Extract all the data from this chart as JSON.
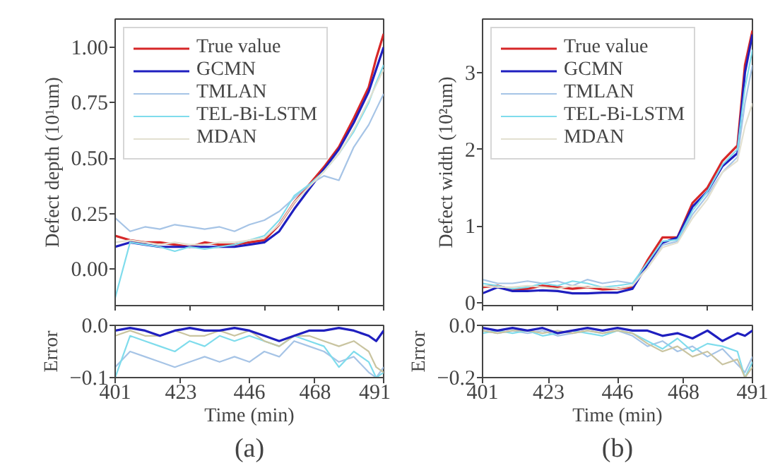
{
  "chart_data": [
    {
      "type": "line",
      "ylabel": "Defect depth (10¹um)",
      "x": [
        401,
        406,
        411,
        416,
        421,
        426,
        431,
        436,
        441,
        446,
        451,
        456,
        461,
        466,
        471,
        476,
        481,
        486,
        488.5,
        491
      ],
      "xlim": [
        401,
        491
      ],
      "xticks": [
        {
          "value": 401,
          "label": null
        },
        {
          "value": 426,
          "label": null
        },
        {
          "value": 451,
          "label": null
        },
        {
          "value": 476,
          "label": null
        },
        {
          "value": 491,
          "label": null
        }
      ],
      "ylim": [
        -0.165,
        1.127
      ],
      "yticks": [
        {
          "value": 0,
          "label": "0.00"
        },
        {
          "value": 0.25,
          "label": "0.25"
        },
        {
          "value": 0.5,
          "label": "0.50"
        },
        {
          "value": 0.75,
          "label": "0.75"
        },
        {
          "value": 1,
          "label": "1.00"
        }
      ],
      "tick_labels": "y",
      "legend": "top left",
      "grid": false,
      "series": [
        {
          "name": "True value",
          "color": "#d62728",
          "values": [
            0.15,
            0.13,
            0.12,
            0.12,
            0.11,
            0.1,
            0.12,
            0.11,
            0.11,
            0.12,
            0.13,
            0.2,
            0.3,
            0.38,
            0.46,
            0.55,
            0.68,
            0.82,
            0.95,
            1.06
          ]
        },
        {
          "name": "GCMN",
          "color": "#1f1fbf",
          "values": [
            0.1,
            0.12,
            0.11,
            0.1,
            0.1,
            0.1,
            0.1,
            0.1,
            0.1,
            0.11,
            0.12,
            0.17,
            0.27,
            0.36,
            0.45,
            0.54,
            0.66,
            0.8,
            0.9,
            1.0
          ]
        },
        {
          "name": "TMLAN",
          "color": "#a6c4e6",
          "values": [
            0.23,
            0.17,
            0.19,
            0.18,
            0.2,
            0.19,
            0.18,
            0.19,
            0.17,
            0.2,
            0.22,
            0.26,
            0.32,
            0.38,
            0.42,
            0.4,
            0.55,
            0.65,
            0.72,
            0.79
          ]
        },
        {
          "name": "TEL-Bi-LSTM",
          "color": "#7fdcec",
          "values": [
            -0.13,
            0.12,
            0.11,
            0.1,
            0.08,
            0.1,
            0.09,
            0.1,
            0.11,
            0.13,
            0.15,
            0.22,
            0.33,
            0.38,
            0.44,
            0.52,
            0.62,
            0.75,
            0.84,
            0.92
          ]
        },
        {
          "name": "MDAN",
          "color": "#e2e0d0",
          "values": [
            0.12,
            0.13,
            0.12,
            0.11,
            0.12,
            0.11,
            0.11,
            0.12,
            0.12,
            0.13,
            0.14,
            0.2,
            0.3,
            0.37,
            0.44,
            0.52,
            0.63,
            0.76,
            0.83,
            0.9
          ]
        }
      ]
    },
    {
      "type": "line",
      "ylabel": "Defect width (10²um)",
      "x": [
        401,
        406,
        411,
        416,
        421,
        426,
        431,
        436,
        441,
        446,
        451,
        456,
        461,
        466,
        471,
        476,
        481,
        486,
        488.5,
        491
      ],
      "xlim": [
        401,
        491
      ],
      "xticks": [
        {
          "value": 401,
          "label": null
        },
        {
          "value": 426,
          "label": null
        },
        {
          "value": 451,
          "label": null
        },
        {
          "value": 476,
          "label": null
        },
        {
          "value": 491,
          "label": null
        }
      ],
      "ylim": [
        -0.04,
        3.7
      ],
      "yticks": [
        0,
        1,
        2,
        3
      ],
      "tick_labels": "y",
      "legend": "top left",
      "grid": false,
      "series": [
        {
          "name": "True value",
          "color": "#d62728",
          "values": [
            0.2,
            0.22,
            0.17,
            0.18,
            0.22,
            0.2,
            0.18,
            0.2,
            0.17,
            0.18,
            0.2,
            0.55,
            0.85,
            0.85,
            1.3,
            1.5,
            1.85,
            2.05,
            3.1,
            3.55
          ]
        },
        {
          "name": "GCMN",
          "color": "#1f1fbf",
          "values": [
            0.12,
            0.2,
            0.15,
            0.15,
            0.16,
            0.15,
            0.12,
            0.12,
            0.13,
            0.13,
            0.18,
            0.5,
            0.78,
            0.85,
            1.25,
            1.45,
            1.78,
            1.95,
            3.0,
            3.5
          ]
        },
        {
          "name": "TMLAN",
          "color": "#a6c4e6",
          "values": [
            0.3,
            0.25,
            0.25,
            0.28,
            0.25,
            0.28,
            0.22,
            0.3,
            0.25,
            0.28,
            0.25,
            0.45,
            0.75,
            0.8,
            1.15,
            1.4,
            1.7,
            1.9,
            2.6,
            3.1
          ]
        },
        {
          "name": "TEL-Bi-LSTM",
          "color": "#7fdcec",
          "values": [
            0.25,
            0.22,
            0.18,
            0.2,
            0.25,
            0.22,
            0.28,
            0.25,
            0.2,
            0.22,
            0.25,
            0.52,
            0.8,
            0.82,
            1.2,
            1.45,
            1.8,
            2.0,
            2.8,
            3.3
          ]
        },
        {
          "name": "MDAN",
          "color": "#e2e0d0",
          "values": [
            0.22,
            0.2,
            0.2,
            0.22,
            0.2,
            0.18,
            0.22,
            0.2,
            0.2,
            0.18,
            0.22,
            0.45,
            0.72,
            0.78,
            1.1,
            1.35,
            1.7,
            1.85,
            2.3,
            2.6
          ]
        }
      ]
    },
    {
      "type": "line",
      "ylabel": "Error",
      "xlabel": "Time (min)",
      "annotations": [
        "(a)"
      ],
      "x": [
        401,
        406,
        411,
        416,
        421,
        426,
        431,
        436,
        441,
        446,
        451,
        456,
        461,
        466,
        471,
        476,
        481,
        486,
        488.5,
        491
      ],
      "xlim": [
        401,
        491
      ],
      "xticks": [
        401,
        423,
        446,
        468,
        491
      ],
      "ylim": [
        -0.1,
        0
      ],
      "yticks": [
        {
          "value": -0.1,
          "label": "−0.1"
        },
        {
          "value": 0,
          "label": "0.0"
        }
      ],
      "grid": false,
      "series": [
        {
          "color": "#a6c4e6",
          "values": [
            -0.08,
            -0.05,
            -0.06,
            -0.07,
            -0.08,
            -0.07,
            -0.06,
            -0.07,
            -0.06,
            -0.07,
            -0.05,
            -0.06,
            -0.03,
            -0.04,
            -0.05,
            -0.07,
            -0.06,
            -0.09,
            -0.1,
            -0.08
          ]
        },
        {
          "color": "#7fdcec",
          "values": [
            -0.1,
            -0.02,
            -0.03,
            -0.04,
            -0.05,
            -0.03,
            -0.04,
            -0.02,
            -0.03,
            -0.02,
            -0.03,
            -0.04,
            -0.02,
            -0.03,
            -0.04,
            -0.08,
            -0.05,
            -0.07,
            -0.1,
            -0.09
          ]
        },
        {
          "color": "#c9c4a0",
          "values": [
            -0.02,
            -0.01,
            -0.02,
            -0.02,
            -0.01,
            -0.02,
            -0.02,
            -0.01,
            -0.02,
            -0.01,
            -0.03,
            -0.04,
            -0.02,
            -0.02,
            -0.03,
            -0.04,
            -0.03,
            -0.05,
            -0.08,
            -0.09
          ]
        },
        {
          "color": "#1f1fbf",
          "type": "line",
          "values": [
            -0.01,
            -0.005,
            -0.01,
            -0.02,
            -0.01,
            -0.005,
            -0.01,
            -0.01,
            -0.005,
            -0.01,
            -0.02,
            -0.03,
            -0.02,
            -0.01,
            -0.01,
            -0.005,
            -0.01,
            -0.02,
            -0.03,
            -0.01
          ]
        }
      ]
    },
    {
      "type": "line",
      "ylabel": "Error",
      "xlabel": "Time (min)",
      "annotations": [
        "(b)"
      ],
      "x": [
        401,
        406,
        411,
        416,
        421,
        426,
        431,
        436,
        441,
        446,
        451,
        456,
        461,
        466,
        471,
        476,
        481,
        486,
        488.5,
        491
      ],
      "xlim": [
        401,
        491
      ],
      "xticks": [
        401,
        423,
        446,
        468,
        491
      ],
      "ylim": [
        -0.2,
        0
      ],
      "yticks": [
        {
          "value": -0.2,
          "label": "−0.2"
        },
        {
          "value": 0,
          "label": "0.0"
        }
      ],
      "grid": false,
      "series": [
        {
          "color": "#a6c4e6",
          "values": [
            -0.02,
            -0.03,
            -0.02,
            -0.03,
            -0.02,
            -0.04,
            -0.03,
            -0.02,
            -0.03,
            -0.02,
            -0.04,
            -0.08,
            -0.06,
            -0.1,
            -0.08,
            -0.12,
            -0.09,
            -0.15,
            -0.18,
            -0.12
          ]
        },
        {
          "color": "#7fdcec",
          "values": [
            -0.03,
            -0.02,
            -0.03,
            -0.02,
            -0.04,
            -0.03,
            -0.02,
            -0.03,
            -0.04,
            -0.02,
            -0.03,
            -0.06,
            -0.09,
            -0.05,
            -0.1,
            -0.07,
            -0.08,
            -0.1,
            -0.2,
            -0.14
          ]
        },
        {
          "color": "#c9c4a0",
          "values": [
            -0.02,
            -0.03,
            -0.02,
            -0.02,
            -0.03,
            -0.02,
            -0.03,
            -0.02,
            -0.03,
            -0.02,
            -0.03,
            -0.07,
            -0.1,
            -0.08,
            -0.12,
            -0.1,
            -0.15,
            -0.13,
            -0.2,
            -0.16
          ]
        },
        {
          "color": "#1f1fbf",
          "type": "line",
          "values": [
            -0.01,
            -0.02,
            -0.01,
            -0.02,
            -0.01,
            -0.03,
            -0.02,
            -0.01,
            -0.02,
            -0.01,
            -0.02,
            -0.02,
            -0.04,
            -0.03,
            -0.05,
            -0.02,
            -0.06,
            -0.03,
            -0.04,
            -0.02
          ]
        }
      ]
    }
  ]
}
